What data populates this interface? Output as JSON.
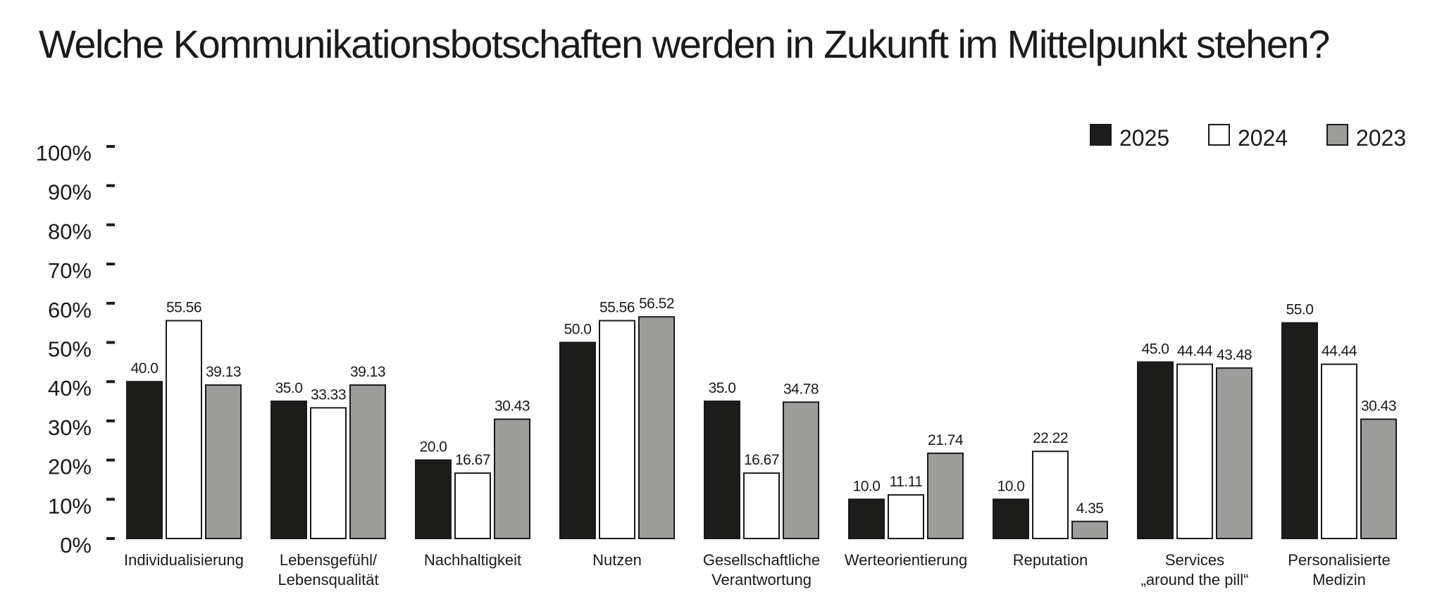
{
  "chart_data": {
    "type": "bar",
    "title": "Welche Kommunikationsbotschaften werden in Zukunft im Mittelpunkt stehen?",
    "categories": [
      "Individualisierung",
      "Lebensgefühl/\nLebensqualität",
      "Nachhaltigkeit",
      "Nutzen",
      "Gesellschaftliche\nVerantwortung",
      "Werteorientierung",
      "Reputation",
      "Services\n„around the pill“",
      "Personalisierte\nMedizin"
    ],
    "series": [
      {
        "name": "2025",
        "color": "#1c1c1a",
        "values": [
          40.0,
          35.0,
          20.0,
          50.0,
          35.0,
          10.0,
          10.0,
          45.0,
          55.0
        ],
        "labels": [
          "40.0",
          "35.0",
          "20.0",
          "50.0",
          "35.0",
          "10.0",
          "10.0",
          "45.0",
          "55.0"
        ]
      },
      {
        "name": "2024",
        "color": "#ffffff",
        "values": [
          55.56,
          33.33,
          16.67,
          55.56,
          16.67,
          11.11,
          22.22,
          44.44,
          44.44
        ],
        "labels": [
          "55.56",
          "33.33",
          "16.67",
          "55.56",
          "16.67",
          "11.11",
          "22.22",
          "44.44",
          "44.44"
        ]
      },
      {
        "name": "2023",
        "color": "#9d9e9c",
        "values": [
          39.13,
          39.13,
          30.43,
          56.52,
          34.78,
          21.74,
          4.35,
          43.48,
          30.43
        ],
        "labels": [
          "39.13",
          "39.13",
          "30.43",
          "56.52",
          "34.78",
          "21.74",
          "4.35",
          "43.48",
          "30.43"
        ]
      }
    ],
    "ylim": [
      0,
      100
    ],
    "yticks": [
      "0%",
      "10%",
      "20%",
      "30%",
      "40%",
      "50%",
      "60%",
      "70%",
      "80%",
      "90%",
      "100%"
    ],
    "xlabel": "",
    "ylabel": "",
    "grid": false,
    "legend_position": "top-right"
  }
}
